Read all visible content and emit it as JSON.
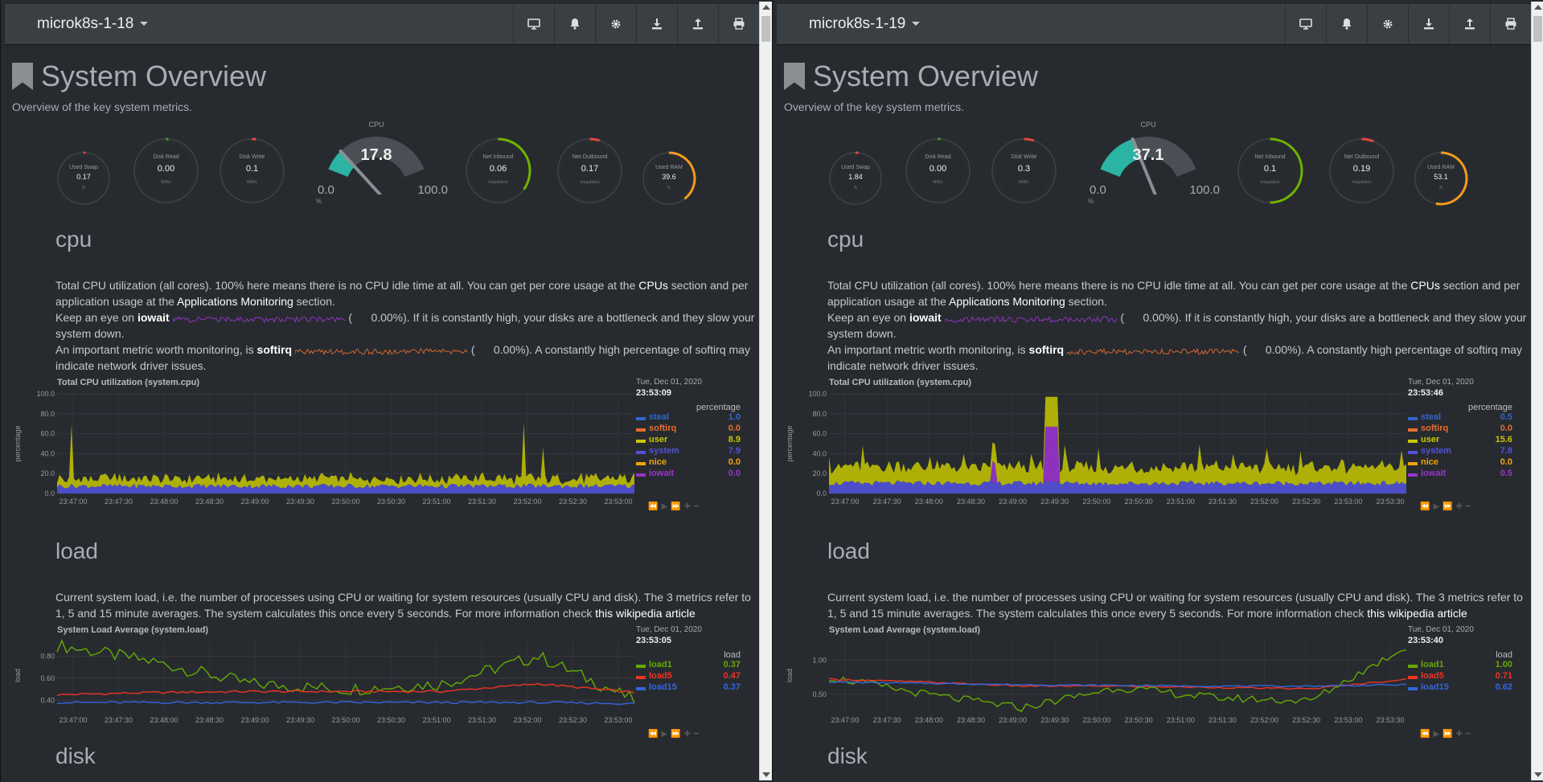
{
  "colors": {
    "bg": "#272b30",
    "navbar": "#3a3f44",
    "gauge_teal": "#2bb3a3",
    "net_green": "#6fb300",
    "ram_orange": "#f59c1a",
    "steal": "#3366cc",
    "softirq": "#e66d2e",
    "user": "#c8c800",
    "system": "#5151d8",
    "nice": "#f0a30a",
    "iowait": "#9933cc",
    "load1": "#66aa00",
    "load5": "#ee3322",
    "load15": "#3366dd"
  },
  "icons": [
    "monitor-icon",
    "bell-icon",
    "gear-icon",
    "download-icon",
    "upload-icon",
    "print-icon"
  ],
  "windows": [
    {
      "host": "microk8s-1-18",
      "title": "System Overview",
      "subtitle": "Overview of the key system metrics.",
      "gauges": {
        "swap": {
          "label": "Used Swap",
          "value": "0.17",
          "unit": "%",
          "level": 0.0017
        },
        "disk_read": {
          "label": "Disk Read",
          "value": "0.00",
          "unit": "MiB/s",
          "level": 0
        },
        "disk_write": {
          "label": "Disk Write",
          "value": "0.1",
          "unit": "MiB/s",
          "level": 0.02
        },
        "cpu": {
          "label": "CPU",
          "value": "17.8",
          "min": "0.0",
          "max": "100.0",
          "unit": "%",
          "level": 0.178
        },
        "net_in": {
          "label": "Net Inbound",
          "value": "0.06",
          "unit": "megabits/s",
          "level": 0.35
        },
        "net_out": {
          "label": "Net Outbound",
          "value": "0.17",
          "unit": "megabits/s",
          "level": 0.05
        },
        "ram": {
          "label": "Used RAM",
          "value": "39.6",
          "unit": "%",
          "level": 0.396
        }
      },
      "cpu_section": {
        "heading": "cpu",
        "p1_a": "Total CPU utilization (all cores). 100% here means there is no CPU idle time at all. You can get per core usage at the ",
        "p1_link1": "CPUs",
        "p1_b": " section and per application usage at the ",
        "p1_link2": "Applications Monitoring",
        "p1_c": " section.",
        "p2_a": "Keep an eye on ",
        "p2_bold": "iowait",
        "p2_val": "0.00%",
        "p2_b": "). If it is constantly high, your disks are a bottleneck and they slow your system down.",
        "p3_a": "An important metric worth monitoring, is ",
        "p3_bold": "softirq",
        "p3_val": "0.00%",
        "p3_b": "). A constantly high percentage of softirq may indicate network driver issues."
      },
      "cpu_chart": {
        "title": "Total CPU utilization (system.cpu)",
        "date": "Tue, Dec 01, 2020",
        "time": "23:53:09",
        "units": "percentage",
        "ylabel": "percentage",
        "yticks": [
          "100.0",
          "80.0",
          "60.0",
          "40.0",
          "20.0",
          "0.0"
        ],
        "xticks": [
          "23:47:00",
          "23:47:30",
          "23:48:00",
          "23:48:30",
          "23:49:00",
          "23:49:30",
          "23:50:00",
          "23:50:30",
          "23:51:00",
          "23:51:30",
          "23:52:00",
          "23:52:30",
          "23:53:00"
        ],
        "legend": [
          {
            "name": "steal",
            "value": "1.0",
            "color": "#3366cc"
          },
          {
            "name": "softirq",
            "value": "0.0",
            "color": "#e66d2e"
          },
          {
            "name": "user",
            "value": "8.9",
            "color": "#c8c800"
          },
          {
            "name": "system",
            "value": "7.9",
            "color": "#5151d8"
          },
          {
            "name": "nice",
            "value": "0.0",
            "color": "#f0a30a"
          },
          {
            "name": "iowait",
            "value": "0.0",
            "color": "#9933cc"
          }
        ]
      },
      "load_section": {
        "heading": "load",
        "p1": "Current system load, i.e. the number of processes using CPU or waiting for system resources (usually CPU and disk). The 3 metrics refer to 1, 5 and 15 minute averages. The system calculates this once every 5 seconds. For more information check ",
        "link": "this wikipedia article"
      },
      "load_chart": {
        "title": "System Load Average (system.load)",
        "date": "Tue, Dec 01, 2020",
        "time": "23:53:05",
        "units": "load",
        "ylabel": "load",
        "yticks": [
          "0.80",
          "0.60",
          "0.40"
        ],
        "xticks": [
          "23:47:00",
          "23:47:30",
          "23:48:00",
          "23:48:30",
          "23:49:00",
          "23:49:30",
          "23:50:00",
          "23:50:30",
          "23:51:00",
          "23:51:30",
          "23:52:00",
          "23:52:30",
          "23:53:00"
        ],
        "legend": [
          {
            "name": "load1",
            "value": "0.37",
            "color": "#66aa00"
          },
          {
            "name": "load5",
            "value": "0.47",
            "color": "#ee3322"
          },
          {
            "name": "load15",
            "value": "0.37",
            "color": "#3366dd"
          }
        ]
      },
      "disk_heading": "disk"
    },
    {
      "host": "microk8s-1-19",
      "title": "System Overview",
      "subtitle": "Overview of the key system metrics.",
      "gauges": {
        "swap": {
          "label": "Used Swap",
          "value": "1.84",
          "unit": "%",
          "level": 0.018
        },
        "disk_read": {
          "label": "Disk Read",
          "value": "0.00",
          "unit": "MiB/s",
          "level": 0
        },
        "disk_write": {
          "label": "Disk Write",
          "value": "0.3",
          "unit": "MiB/s",
          "level": 0.05
        },
        "cpu": {
          "label": "CPU",
          "value": "37.1",
          "min": "0.0",
          "max": "100.0",
          "unit": "%",
          "level": 0.371
        },
        "net_in": {
          "label": "Net Inbound",
          "value": "0.1",
          "unit": "megabits/s",
          "level": 0.5
        },
        "net_out": {
          "label": "Net Outbound",
          "value": "0.19",
          "unit": "megabits/s",
          "level": 0.06
        },
        "ram": {
          "label": "Used RAM",
          "value": "53.1",
          "unit": "%",
          "level": 0.531
        }
      },
      "cpu_section": {
        "heading": "cpu",
        "p1_a": "Total CPU utilization (all cores). 100% here means there is no CPU idle time at all. You can get per core usage at the ",
        "p1_link1": "CPUs",
        "p1_b": " section and per application usage at the ",
        "p1_link2": "Applications Monitoring",
        "p1_c": " section.",
        "p2_a": "Keep an eye on ",
        "p2_bold": "iowait",
        "p2_val": "0.00%",
        "p2_b": "). If it is constantly high, your disks are a bottleneck and they slow your system down.",
        "p3_a": "An important metric worth monitoring, is ",
        "p3_bold": "softirq",
        "p3_val": "0.00%",
        "p3_b": "). A constantly high percentage of softirq may indicate network driver issues."
      },
      "cpu_chart": {
        "title": "Total CPU utilization (system.cpu)",
        "date": "Tue, Dec 01, 2020",
        "time": "23:53:46",
        "units": "percentage",
        "ylabel": "percentage",
        "yticks": [
          "100.0",
          "80.0",
          "60.0",
          "40.0",
          "20.0",
          "0.0"
        ],
        "xticks": [
          "23:47:00",
          "23:47:30",
          "23:48:00",
          "23:48:30",
          "23:49:00",
          "23:49:30",
          "23:50:00",
          "23:50:30",
          "23:51:00",
          "23:51:30",
          "23:52:00",
          "23:52:30",
          "23:53:00",
          "23:53:30"
        ],
        "legend": [
          {
            "name": "steal",
            "value": "0.5",
            "color": "#3366cc"
          },
          {
            "name": "softirq",
            "value": "0.0",
            "color": "#e66d2e"
          },
          {
            "name": "user",
            "value": "15.6",
            "color": "#c8c800"
          },
          {
            "name": "system",
            "value": "7.8",
            "color": "#5151d8"
          },
          {
            "name": "nice",
            "value": "0.0",
            "color": "#f0a30a"
          },
          {
            "name": "iowait",
            "value": "0.5",
            "color": "#9933cc"
          }
        ]
      },
      "load_section": {
        "heading": "load",
        "p1": "Current system load, i.e. the number of processes using CPU or waiting for system resources (usually CPU and disk). The 3 metrics refer to 1, 5 and 15 minute averages. The system calculates this once every 5 seconds. For more information check ",
        "link": "this wikipedia article"
      },
      "load_chart": {
        "title": "System Load Average (system.load)",
        "date": "Tue, Dec 01, 2020",
        "time": "23:53:40",
        "units": "load",
        "ylabel": "load",
        "yticks": [
          "1.00",
          "0.50"
        ],
        "xticks": [
          "23:47:00",
          "23:47:30",
          "23:48:00",
          "23:48:30",
          "23:49:00",
          "23:49:30",
          "23:50:00",
          "23:50:30",
          "23:51:00",
          "23:51:30",
          "23:52:00",
          "23:52:30",
          "23:53:00",
          "23:53:30"
        ],
        "legend": [
          {
            "name": "load1",
            "value": "1.00",
            "color": "#66aa00"
          },
          {
            "name": "load5",
            "value": "0.71",
            "color": "#ee3322"
          },
          {
            "name": "load15",
            "value": "0.62",
            "color": "#3366dd"
          }
        ]
      },
      "disk_heading": "disk"
    }
  ],
  "chart_data": [
    {
      "type": "area",
      "title": "Total CPU utilization (system.cpu)",
      "ylabel": "percentage",
      "ylim": [
        0,
        100
      ],
      "x": [
        "23:47:00",
        "23:48:00",
        "23:49:00",
        "23:50:00",
        "23:51:00",
        "23:52:00",
        "23:53:00"
      ],
      "series": [
        {
          "name": "user",
          "values": [
            9,
            10,
            9,
            10,
            9,
            11,
            9
          ]
        },
        {
          "name": "system",
          "values": [
            7,
            8,
            8,
            8,
            7,
            8,
            8
          ]
        },
        {
          "name": "steal",
          "values": [
            1,
            1,
            1,
            1,
            1,
            1,
            1
          ]
        }
      ]
    },
    {
      "type": "line",
      "title": "System Load Average (system.load)",
      "ylabel": "load",
      "x": [
        "23:47:00",
        "23:48:00",
        "23:49:00",
        "23:50:00",
        "23:51:00",
        "23:52:00",
        "23:53:00"
      ],
      "series": [
        {
          "name": "load1",
          "values": [
            0.9,
            0.75,
            0.55,
            0.5,
            0.55,
            0.8,
            0.4
          ]
        },
        {
          "name": "load5",
          "values": [
            0.45,
            0.47,
            0.48,
            0.48,
            0.48,
            0.55,
            0.47
          ]
        },
        {
          "name": "load15",
          "values": [
            0.38,
            0.38,
            0.38,
            0.38,
            0.38,
            0.38,
            0.37
          ]
        }
      ]
    },
    {
      "type": "area",
      "title": "Total CPU utilization (system.cpu)",
      "ylabel": "percentage",
      "ylim": [
        0,
        100
      ],
      "x": [
        "23:47:00",
        "23:48:00",
        "23:49:00",
        "23:50:00",
        "23:51:00",
        "23:52:00",
        "23:53:00"
      ],
      "series": [
        {
          "name": "user",
          "values": [
            16,
            15,
            17,
            15,
            15,
            16,
            15
          ]
        },
        {
          "name": "system",
          "values": [
            8,
            8,
            8,
            8,
            8,
            8,
            8
          ]
        },
        {
          "name": "iowait",
          "values": [
            0.5,
            0.5,
            30,
            0.5,
            0.5,
            0.5,
            0.5
          ]
        }
      ]
    },
    {
      "type": "line",
      "title": "System Load Average (system.load)",
      "ylabel": "load",
      "x": [
        "23:47:00",
        "23:48:00",
        "23:49:00",
        "23:50:00",
        "23:51:00",
        "23:52:00",
        "23:53:00"
      ],
      "series": [
        {
          "name": "load1",
          "values": [
            0.75,
            0.5,
            0.3,
            0.6,
            0.45,
            0.4,
            1.2
          ]
        },
        {
          "name": "load5",
          "values": [
            0.72,
            0.68,
            0.62,
            0.62,
            0.6,
            0.58,
            0.72
          ]
        },
        {
          "name": "load15",
          "values": [
            0.68,
            0.66,
            0.64,
            0.63,
            0.62,
            0.62,
            0.64
          ]
        }
      ]
    }
  ]
}
